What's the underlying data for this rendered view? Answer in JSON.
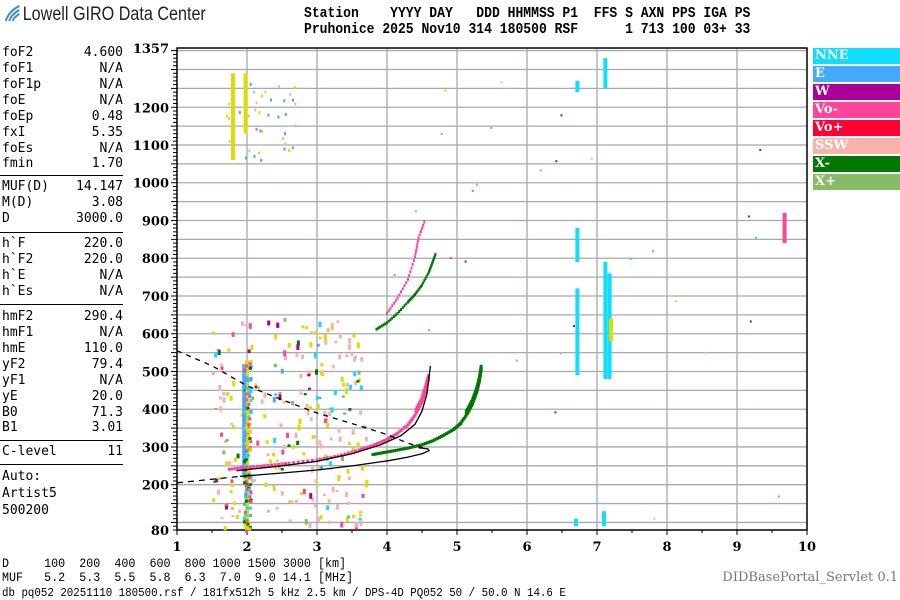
{
  "header": {
    "logo_text": "Lowell GIRO Data Center",
    "row1": "Station    YYYY DAY   DDD HHMMSS P1  FFS S AXN PPS IGA PS",
    "row2": "Pruhonice 2025 Nov10 314 180500 RSF      1 713 100 03+ 33"
  },
  "params": [
    {
      "label": "foF2",
      "value": "4.600"
    },
    {
      "label": "foF1",
      "value": "N/A"
    },
    {
      "label": "foF1p",
      "value": "N/A"
    },
    {
      "label": "foE",
      "value": "N/A"
    },
    {
      "label": "foEp",
      "value": "0.48"
    },
    {
      "label": "fxI",
      "value": "5.35"
    },
    {
      "label": "foEs",
      "value": "N/A"
    },
    {
      "label": "fmin",
      "value": "1.70"
    },
    {
      "label": "MUF(D)",
      "value": "14.147"
    },
    {
      "label": "M(D)",
      "value": "3.08"
    },
    {
      "label": "D",
      "value": "3000.0"
    },
    {
      "label": "h`F",
      "value": "220.0"
    },
    {
      "label": "h`F2",
      "value": "220.0"
    },
    {
      "label": "h`E",
      "value": "N/A"
    },
    {
      "label": "h`Es",
      "value": "N/A"
    },
    {
      "label": "hmF2",
      "value": "290.4"
    },
    {
      "label": "hmF1",
      "value": "N/A"
    },
    {
      "label": "hmE",
      "value": "110.0"
    },
    {
      "label": "yF2",
      "value": "79.4"
    },
    {
      "label": "yF1",
      "value": "N/A"
    },
    {
      "label": "yE",
      "value": "20.0"
    },
    {
      "label": "B0",
      "value": "71.3"
    },
    {
      "label": "B1",
      "value": "3.01"
    },
    {
      "label": "C-level",
      "value": "11"
    }
  ],
  "auto": [
    "Auto:",
    "Artist5",
    "500200"
  ],
  "legend": [
    {
      "label": "NNE",
      "color": "#11ddff"
    },
    {
      "label": "E",
      "color": "#44aaff"
    },
    {
      "label": "W",
      "color": "#aa0099"
    },
    {
      "label": "Vo-",
      "color": "#ff4499"
    },
    {
      "label": "Vo+",
      "color": "#ff0033"
    },
    {
      "label": "SSW",
      "color": "#f4b4aa"
    },
    {
      "label": "X-",
      "color": "#007700"
    },
    {
      "label": "X+",
      "color": "#88bb66"
    }
  ],
  "bottom": {
    "d_row": "D     100  200  400  600  800 1000 1500 3000 [km]",
    "muf_row": "MUF   5.2  5.3  5.5  5.8  6.3  7.0  9.0 14.1 [MHz]",
    "footer": "db pq052 20251110 180500.rsf / 181fx512h 5 kHz 2.5 km / DPS-4D PQ052 50 / 50.0 N 14.6 E",
    "servlet": "DIDBasePortal_Servlet 0.1"
  },
  "chart_data": {
    "type": "scatter",
    "xlim": [
      1,
      10
    ],
    "ylim": [
      80,
      1357
    ],
    "x_ticks": [
      "1",
      "2",
      "3",
      "4",
      "5",
      "6",
      "7",
      "8",
      "9",
      "10"
    ],
    "y_ticks": [
      "80",
      "200",
      "300",
      "400",
      "500",
      "600",
      "700",
      "800",
      "900",
      "1000",
      "1100",
      "1200",
      "1357"
    ],
    "grid": true,
    "o_trace": [
      [
        1.75,
        237
      ],
      [
        2,
        242
      ],
      [
        2.3,
        247
      ],
      [
        2.6,
        253
      ],
      [
        3,
        262
      ],
      [
        3.3,
        272
      ],
      [
        3.6,
        288
      ],
      [
        3.8,
        300
      ],
      [
        4,
        316
      ],
      [
        4.15,
        332
      ],
      [
        4.3,
        355
      ],
      [
        4.4,
        380
      ],
      [
        4.5,
        415
      ],
      [
        4.55,
        445
      ],
      [
        4.6,
        480
      ]
    ],
    "x_trace": [
      [
        3.8,
        276
      ],
      [
        3.95,
        281
      ],
      [
        4.1,
        286
      ],
      [
        4.3,
        293
      ],
      [
        4.5,
        302
      ],
      [
        4.65,
        312
      ],
      [
        4.8,
        326
      ],
      [
        4.95,
        342
      ],
      [
        5.05,
        358
      ],
      [
        5.15,
        385
      ],
      [
        5.22,
        410
      ],
      [
        5.28,
        440
      ],
      [
        5.32,
        470
      ],
      [
        5.35,
        505
      ]
    ],
    "x_upper": [
      [
        3.85,
        608
      ],
      [
        4,
        625
      ],
      [
        4.15,
        650
      ],
      [
        4.3,
        680
      ],
      [
        4.4,
        700
      ],
      [
        4.5,
        725
      ],
      [
        4.6,
        760
      ],
      [
        4.65,
        785
      ],
      [
        4.7,
        810
      ]
    ],
    "o_upper": [
      [
        4,
        650
      ],
      [
        4.15,
        690
      ],
      [
        4.3,
        740
      ],
      [
        4.4,
        800
      ],
      [
        4.45,
        850
      ],
      [
        4.55,
        900
      ]
    ],
    "model_virtual": [
      [
        1.85,
        237
      ],
      [
        2.5,
        250
      ],
      [
        3,
        262
      ],
      [
        3.5,
        282
      ],
      [
        3.9,
        305
      ],
      [
        4.2,
        330
      ],
      [
        4.4,
        360
      ],
      [
        4.5,
        395
      ],
      [
        4.57,
        440
      ],
      [
        4.62,
        515
      ]
    ],
    "profile": [
      [
        1.9,
        222
      ],
      [
        2.5,
        231
      ],
      [
        3,
        239
      ],
      [
        3.5,
        250
      ],
      [
        4,
        263
      ],
      [
        4.3,
        273
      ],
      [
        4.5,
        282
      ],
      [
        4.6,
        290
      ],
      [
        4.58,
        295
      ],
      [
        4.45,
        298
      ]
    ],
    "profile_ext": [
      [
        1,
        205
      ],
      [
        1.9,
        222
      ]
    ],
    "dashed_curve": [
      [
        1,
        555
      ],
      [
        1.5,
        515
      ],
      [
        2,
        462
      ],
      [
        2.5,
        425
      ],
      [
        3,
        390
      ],
      [
        3.5,
        362
      ],
      [
        4,
        333
      ],
      [
        4.3,
        310
      ],
      [
        4.6,
        293
      ]
    ],
    "bars": [
      [
        2.0,
        80,
        530,
        "#dddd00"
      ],
      [
        1.98,
        1130,
        1290,
        "#dddd00"
      ],
      [
        1.8,
        1060,
        1290,
        "#dddd00"
      ],
      [
        1.96,
        220,
        520,
        "#44aaff"
      ],
      [
        6.72,
        490,
        720,
        "#11ddff"
      ],
      [
        6.72,
        790,
        880,
        "#11ddff"
      ],
      [
        6.72,
        1240,
        1270,
        "#11ddff"
      ],
      [
        7.12,
        480,
        790,
        "#11ddff"
      ],
      [
        7.12,
        1250,
        1330,
        "#11ddff"
      ],
      [
        7.18,
        480,
        760,
        "#11ddff"
      ],
      [
        7.2,
        580,
        640,
        "#dddd00"
      ],
      [
        9.68,
        840,
        920,
        "#ff4499"
      ],
      [
        6.7,
        90,
        110,
        "#11ddff"
      ],
      [
        7.1,
        90,
        130,
        "#11ddff"
      ]
    ]
  }
}
